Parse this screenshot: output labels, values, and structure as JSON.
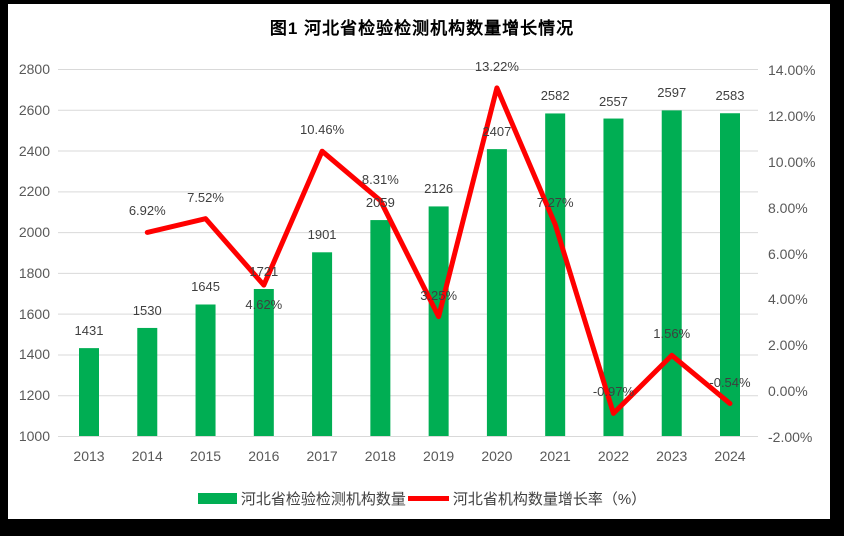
{
  "title": "图1  河北省检验检测机构数量增长情况",
  "legend": [
    {
      "label": "河北省检验检测机构数量",
      "swatch": "bar",
      "color": "#00AE53"
    },
    {
      "label": "河北省机构数量增长率（%）",
      "swatch": "line",
      "color": "#FF0000"
    }
  ],
  "chart_data": {
    "type": "bar+line combo",
    "title": "图1  河北省检验检测机构数量增长情况",
    "categories": [
      "2013",
      "2014",
      "2015",
      "2016",
      "2017",
      "2018",
      "2019",
      "2020",
      "2021",
      "2022",
      "2023",
      "2024"
    ],
    "series": [
      {
        "name": "河北省检验检测机构数量",
        "type": "bar",
        "axis": "left",
        "color": "#00AE53",
        "values": [
          1431,
          1530,
          1645,
          1721,
          1901,
          2059,
          2126,
          2407,
          2582,
          2557,
          2597,
          2583
        ],
        "data_labels": [
          "1431",
          "1530",
          "1645",
          "1721",
          "1901",
          "2059",
          "2126",
          "2407",
          "2582",
          "2557",
          "2597",
          "2583"
        ]
      },
      {
        "name": "河北省机构数量增长率（%）",
        "type": "line",
        "axis": "right",
        "color": "#FF0000",
        "values": [
          null,
          6.92,
          7.52,
          4.62,
          10.46,
          8.31,
          3.25,
          13.22,
          7.27,
          -0.97,
          1.56,
          -0.54
        ],
        "data_labels": [
          null,
          "6.92%",
          "7.52%",
          "4.62%",
          "10.46%",
          "8.31%",
          "3.25%",
          "13.22%",
          "7.27%",
          "-0.97%",
          "1.56%",
          "-0.54%"
        ],
        "label_side": [
          null,
          "above",
          "above",
          "below",
          "above",
          "above",
          "above",
          "above",
          "above",
          "above",
          "above",
          "above"
        ]
      }
    ],
    "left_axis": {
      "min": 1000,
      "max": 2800,
      "step": 200,
      "tick_labels": [
        "1000",
        "1200",
        "1400",
        "1600",
        "1800",
        "2000",
        "2200",
        "2400",
        "2600",
        "2800"
      ]
    },
    "right_axis": {
      "min": -2,
      "max": 14,
      "step": 2,
      "tick_labels": [
        "-2.00%",
        "0.00%",
        "2.00%",
        "4.00%",
        "6.00%",
        "8.00%",
        "10.00%",
        "12.00%",
        "14.00%"
      ]
    },
    "grid": true,
    "legend_position": "bottom",
    "colors": {
      "grid": "#D9D9D9",
      "axis_text": "#595959",
      "data_label_text": "#3F3F3F",
      "background": "#FFFFFF",
      "frame": "#000000"
    }
  }
}
